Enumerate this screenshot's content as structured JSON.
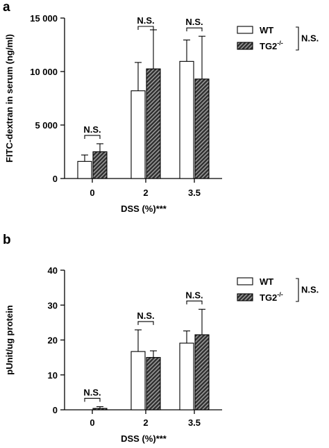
{
  "chart_data": [
    {
      "panel_label": "a",
      "type": "bar",
      "categories": [
        "0",
        "2",
        "3.5"
      ],
      "series": [
        {
          "name": "WT",
          "values": [
            1600,
            8200,
            10950
          ],
          "errors": [
            600,
            2650,
            2000
          ]
        },
        {
          "name": "TG2",
          "name_sup": "-/-",
          "values": [
            2500,
            10250,
            9300
          ],
          "errors": [
            750,
            3650,
            4000
          ]
        }
      ],
      "ylabel": "FITC-dextran in serum (ng/ml)",
      "xlabel": "DSS (%)",
      "xlabel_significance": "***",
      "ylim": [
        0,
        15000
      ],
      "yticks": [
        0,
        5000,
        10000,
        15000
      ],
      "ytick_labels": [
        "0",
        "5 000",
        "10 000",
        "15 000"
      ],
      "pair_annotations": [
        "N.S.",
        "N.S.",
        "N.S."
      ],
      "legend_annotation": "N.S.",
      "legend_position": "top-right",
      "colors": {
        "WT": "#ffffff",
        "TG2": "#4a4a4a"
      }
    },
    {
      "panel_label": "b",
      "type": "bar",
      "categories": [
        "0",
        "2",
        "3.5"
      ],
      "series": [
        {
          "name": "WT",
          "values": [
            0,
            16.7,
            19.1
          ],
          "errors": [
            0,
            6.2,
            3.5
          ]
        },
        {
          "name": "TG2",
          "name_sup": "-/-",
          "values": [
            0.4,
            15.0,
            21.5
          ],
          "errors": [
            0.5,
            1.9,
            7.3
          ]
        }
      ],
      "ylabel": "pUnit/ug protein",
      "xlabel": "DSS (%)",
      "xlabel_significance": "***",
      "ylim": [
        0,
        40
      ],
      "yticks": [
        0,
        10,
        20,
        30,
        40
      ],
      "ytick_labels": [
        "0",
        "10",
        "20",
        "30",
        "40"
      ],
      "pair_annotations": [
        "N.S.",
        "N.S.",
        "N.S."
      ],
      "legend_annotation": "N.S.",
      "legend_position": "top-right",
      "colors": {
        "WT": "#ffffff",
        "TG2": "#4a4a4a"
      }
    }
  ]
}
